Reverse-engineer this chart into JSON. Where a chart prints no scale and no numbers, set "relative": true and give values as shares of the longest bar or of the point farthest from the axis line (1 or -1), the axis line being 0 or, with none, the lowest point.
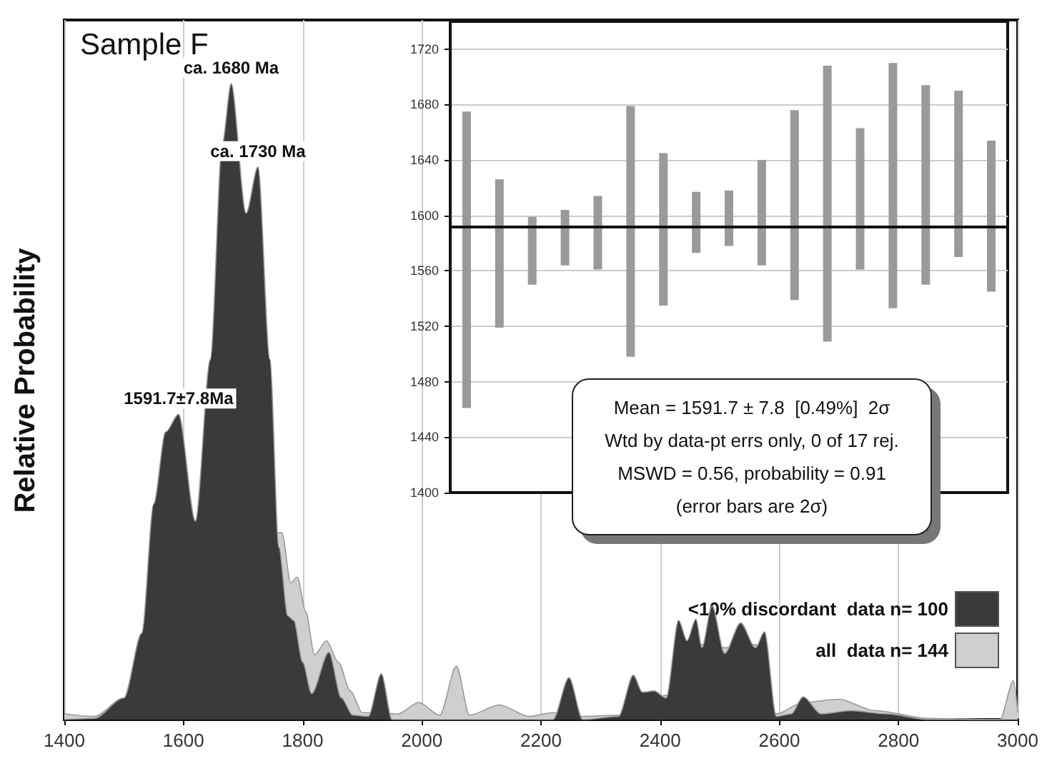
{
  "chart_data": [
    {
      "type": "area",
      "title": "Sample F",
      "ylabel": "Relative Probability",
      "relative": true,
      "xlim": [
        1400,
        3000
      ],
      "xticks": [
        1400,
        1600,
        1800,
        2000,
        2200,
        2400,
        2600,
        2800,
        3000
      ],
      "grid": "x",
      "legend": "bottom right",
      "tick_labels": "x",
      "annotations": [
        {
          "text": "ca. 1680 Ma",
          "x": 1680,
          "y": 1
        },
        {
          "text": "ca. 1730 Ma",
          "x": 1725,
          "y": 0.869
        },
        {
          "text": "1591.7±7.8Ma",
          "x": 1591.7,
          "y": 0.48
        }
      ],
      "series": [
        {
          "name": "<10% discordant  data n= 100",
          "color": "#3a3a3a",
          "x": [
            1400,
            1450,
            1500,
            1530,
            1550,
            1570,
            1591.7,
            1620,
            1645,
            1665,
            1680,
            1705,
            1725,
            1745,
            1760,
            1775,
            1785,
            1800,
            1815,
            1844,
            1865,
            1884,
            1910,
            1932,
            1950,
            2220,
            2247,
            2270,
            2330,
            2355,
            2370,
            2390,
            2410,
            2431,
            2445,
            2460,
            2470,
            2487,
            2508,
            2535,
            2560,
            2575,
            2595,
            2620,
            2640,
            2670,
            2720,
            2780,
            2850,
            3000
          ],
          "values": [
            0,
            0.002,
            0.034,
            0.136,
            0.339,
            0.452,
            0.48,
            0.312,
            0.566,
            0.905,
            1,
            0.796,
            0.869,
            0.566,
            0.271,
            0.163,
            0.156,
            0.09,
            0.041,
            0.106,
            0.034,
            0.007,
            0.005,
            0.072,
            0,
            0,
            0.066,
            0,
            0.005,
            0.07,
            0.043,
            0.045,
            0.034,
            0.156,
            0.124,
            0.158,
            0.113,
            0.179,
            0.104,
            0.152,
            0.113,
            0.138,
            0.005,
            0.009,
            0.036,
            0.009,
            0.014,
            0.009,
            0,
            0
          ]
        },
        {
          "name": "all  data n= 144",
          "color": "#cfcfcf",
          "x": [
            1400,
            1450,
            1500,
            1765,
            1780,
            1791,
            1805,
            1820,
            1840,
            1860,
            1880,
            1900,
            1960,
            1995,
            2030,
            2058,
            2080,
            2130,
            2180,
            2220,
            2270,
            2330,
            2410,
            2470,
            2508,
            2560,
            2595,
            2640,
            2700,
            2760,
            2850,
            2970,
            2993,
            3000
          ],
          "values": [
            0.009,
            0.005,
            0.034,
            0.294,
            0.215,
            0.224,
            0.17,
            0.102,
            0.124,
            0.09,
            0.045,
            0.011,
            0.009,
            0.027,
            0.007,
            0.084,
            0.007,
            0.023,
            0.005,
            0.011,
            0.005,
            0.007,
            0.038,
            0.118,
            0.113,
            0.118,
            0.009,
            0.027,
            0.032,
            0.014,
            0.002,
            0,
            0.061,
            0.011
          ]
        }
      ]
    },
    {
      "type": "bar",
      "categories": [
        null,
        null,
        null,
        null,
        null,
        null,
        null,
        null,
        null,
        null,
        null,
        null,
        null,
        null,
        null,
        null,
        null
      ],
      "ylim": [
        1400,
        1740
      ],
      "yticks": [
        1400,
        1440,
        1480,
        1520,
        1560,
        1600,
        1640,
        1680,
        1720
      ],
      "grid": "y",
      "tick_labels": "y",
      "color": "#9a9a9a",
      "base": [
        1461,
        1519,
        1550,
        1564,
        1561,
        1498,
        1535,
        1573,
        1578,
        1564,
        1539,
        1509,
        1561,
        1533,
        1550,
        1570,
        1545
      ],
      "values": [
        214,
        107,
        49,
        40,
        53,
        181,
        110,
        44,
        40,
        76,
        137,
        199,
        102,
        177,
        144,
        120,
        109
      ],
      "ref_lines": [
        {
          "axis": "y",
          "value": 1591.7,
          "color": "#111111"
        }
      ],
      "annotations": [
        "Mean = 1591.7 ± 7.8  [0.49%]  2σ",
        "Wtd by data-pt errs only, 0 of 17 rej.",
        "MSWD = 0.56, probability = 0.91",
        "(error bars are 2σ)"
      ]
    }
  ]
}
